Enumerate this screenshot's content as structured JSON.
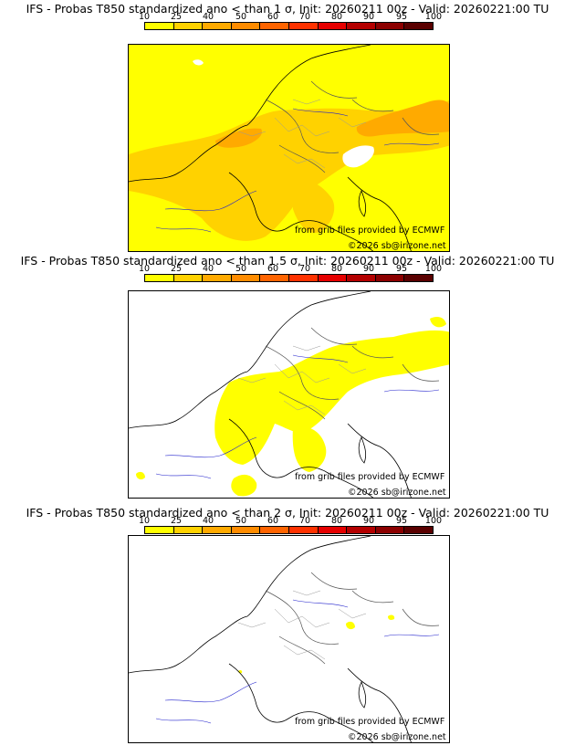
{
  "colorbar": {
    "ticks": [
      "10",
      "25",
      "40",
      "50",
      "60",
      "70",
      "80",
      "90",
      "95",
      "100"
    ],
    "colors": [
      "#ffff00",
      "#ffd200",
      "#ffaa00",
      "#ff8c00",
      "#ff6400",
      "#ff3200",
      "#e60000",
      "#b40000",
      "#8c0000",
      "#5a0000"
    ]
  },
  "panels": [
    {
      "title": "IFS - Probas T850  standardized ano < than 1 σ, Init: 20260211 00z - Valid: 20260221:00 TU",
      "sigma": "1",
      "credit_source": "from grib files provided by ECMWF",
      "credit_copyright": "©2026 sb@irizone.net"
    },
    {
      "title": "IFS - Probas T850  standardized ano < than 1.5 σ, Init: 20260211 00z - Valid: 20260221:00 TU",
      "sigma": "1.5",
      "credit_source": "from grib files provided by ECMWF",
      "credit_copyright": "©2026 sb@irizone.net"
    },
    {
      "title": "IFS - Probas T850  standardized ano < than 2 σ, Init: 20260211 00z - Valid: 20260221:00 TU",
      "sigma": "2",
      "credit_source": "from grib files provided by ECMWF",
      "credit_copyright": "©2026 sb@irizone.net"
    }
  ]
}
